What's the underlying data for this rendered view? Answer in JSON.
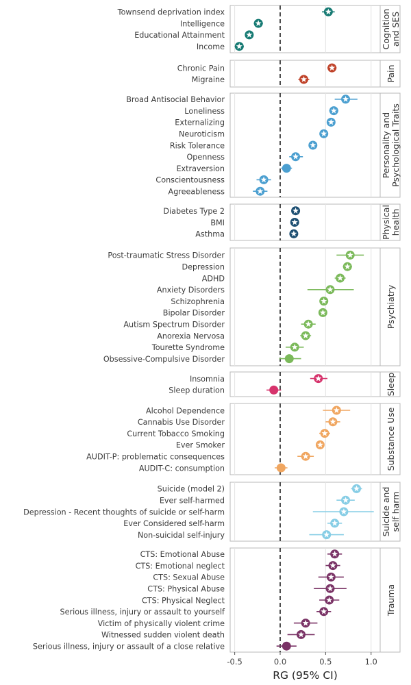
{
  "chart_data": {
    "type": "forest",
    "xlabel": "RG (95% CI)",
    "xlim": [
      -0.55,
      1.1
    ],
    "xticks": [
      -0.5,
      0.0,
      0.5,
      1.0
    ],
    "xtick_labels": [
      "-0.5",
      "0.0",
      "0.5",
      "1.0"
    ],
    "reference_line": 0,
    "markers": {
      "star": "significant",
      "circle": "not significant"
    },
    "panels": [
      {
        "label": [
          "Cognition",
          "and SES"
        ],
        "color": "#167a73",
        "rows": [
          {
            "name": "Townsend deprivation index",
            "rg": 0.53,
            "lo": 0.46,
            "hi": 0.6,
            "marker": "star"
          },
          {
            "name": "Intelligence",
            "rg": -0.24,
            "lo": -0.29,
            "hi": -0.19,
            "marker": "star"
          },
          {
            "name": "Educational Attainment",
            "rg": -0.34,
            "lo": -0.38,
            "hi": -0.3,
            "marker": "star"
          },
          {
            "name": "Income",
            "rg": -0.45,
            "lo": -0.5,
            "hi": -0.4,
            "marker": "star"
          }
        ]
      },
      {
        "label": [
          "Pain"
        ],
        "color": "#c0432a",
        "rows": [
          {
            "name": "Chronic Pain",
            "rg": 0.57,
            "lo": 0.52,
            "hi": 0.62,
            "marker": "star"
          },
          {
            "name": "Migraine",
            "rg": 0.26,
            "lo": 0.2,
            "hi": 0.32,
            "marker": "star"
          }
        ]
      },
      {
        "label": [
          "Personality and",
          "Psychological Traits"
        ],
        "color": "#4b9fd0",
        "rows": [
          {
            "name": "Broad Antisocial Behavior",
            "rg": 0.72,
            "lo": 0.6,
            "hi": 0.85,
            "marker": "star"
          },
          {
            "name": "Loneliness",
            "rg": 0.59,
            "lo": 0.54,
            "hi": 0.64,
            "marker": "star"
          },
          {
            "name": "Externalizing",
            "rg": 0.56,
            "lo": 0.52,
            "hi": 0.6,
            "marker": "star"
          },
          {
            "name": "Neuroticism",
            "rg": 0.48,
            "lo": 0.44,
            "hi": 0.52,
            "marker": "star"
          },
          {
            "name": "Risk Tolerance",
            "rg": 0.36,
            "lo": 0.32,
            "hi": 0.4,
            "marker": "star"
          },
          {
            "name": "Openness",
            "rg": 0.17,
            "lo": 0.1,
            "hi": 0.25,
            "marker": "star"
          },
          {
            "name": "Extraversion",
            "rg": 0.07,
            "lo": 0.01,
            "hi": 0.13,
            "marker": "circle"
          },
          {
            "name": "Conscientousness",
            "rg": -0.18,
            "lo": -0.26,
            "hi": -0.1,
            "marker": "star"
          },
          {
            "name": "Agreeableness",
            "rg": -0.22,
            "lo": -0.3,
            "hi": -0.14,
            "marker": "star"
          }
        ]
      },
      {
        "label": [
          "Physical",
          "health"
        ],
        "color": "#1d4f72",
        "rows": [
          {
            "name": "Diabetes Type 2",
            "rg": 0.17,
            "lo": 0.13,
            "hi": 0.21,
            "marker": "star"
          },
          {
            "name": "BMI",
            "rg": 0.16,
            "lo": 0.13,
            "hi": 0.19,
            "marker": "star"
          },
          {
            "name": "Asthma",
            "rg": 0.15,
            "lo": 0.11,
            "hi": 0.19,
            "marker": "star"
          }
        ]
      },
      {
        "label": [
          "Psychiatry"
        ],
        "color": "#7bb95a",
        "rows": [
          {
            "name": "Post-traumatic Stress Disorder",
            "rg": 0.77,
            "lo": 0.62,
            "hi": 0.92,
            "marker": "star"
          },
          {
            "name": "Depression",
            "rg": 0.74,
            "lo": 0.69,
            "hi": 0.79,
            "marker": "star"
          },
          {
            "name": "ADHD",
            "rg": 0.66,
            "lo": 0.6,
            "hi": 0.72,
            "marker": "star"
          },
          {
            "name": "Anxiety Disorders",
            "rg": 0.55,
            "lo": 0.3,
            "hi": 0.81,
            "marker": "star"
          },
          {
            "name": "Schizophrenia",
            "rg": 0.48,
            "lo": 0.45,
            "hi": 0.51,
            "marker": "star"
          },
          {
            "name": "Bipolar Disorder",
            "rg": 0.47,
            "lo": 0.43,
            "hi": 0.51,
            "marker": "star"
          },
          {
            "name": "Autism Spectrum Disorder",
            "rg": 0.31,
            "lo": 0.23,
            "hi": 0.39,
            "marker": "star"
          },
          {
            "name": "Anorexia Nervosa",
            "rg": 0.28,
            "lo": 0.22,
            "hi": 0.34,
            "marker": "star"
          },
          {
            "name": "Tourette Syndrome",
            "rg": 0.16,
            "lo": 0.06,
            "hi": 0.26,
            "marker": "star"
          },
          {
            "name": "Obsessive-Compulsive Disorder",
            "rg": 0.1,
            "lo": -0.01,
            "hi": 0.23,
            "marker": "circle"
          }
        ]
      },
      {
        "label": [
          "Sleep"
        ],
        "color": "#d6336c",
        "rows": [
          {
            "name": "Insomnia",
            "rg": 0.42,
            "lo": 0.33,
            "hi": 0.52,
            "marker": "star"
          },
          {
            "name": "Sleep duration",
            "rg": -0.07,
            "lo": -0.15,
            "hi": 0.01,
            "marker": "circle"
          }
        ]
      },
      {
        "label": [
          "Substance Use"
        ],
        "color": "#f0a660",
        "rows": [
          {
            "name": "Alcohol Dependence",
            "rg": 0.62,
            "lo": 0.47,
            "hi": 0.77,
            "marker": "star"
          },
          {
            "name": "Cannabis Use Disorder",
            "rg": 0.58,
            "lo": 0.5,
            "hi": 0.66,
            "marker": "star"
          },
          {
            "name": "Current Tobacco Smoking",
            "rg": 0.49,
            "lo": 0.43,
            "hi": 0.55,
            "marker": "star"
          },
          {
            "name": "Ever Smoker",
            "rg": 0.44,
            "lo": 0.4,
            "hi": 0.48,
            "marker": "star"
          },
          {
            "name": "AUDIT-P: problematic consequences",
            "rg": 0.28,
            "lo": 0.19,
            "hi": 0.37,
            "marker": "star"
          },
          {
            "name": "AUDIT-C: consumption",
            "rg": 0.01,
            "lo": -0.06,
            "hi": 0.08,
            "marker": "circle"
          }
        ]
      },
      {
        "label": [
          "Suicide and",
          "self harm"
        ],
        "color": "#86cde5",
        "rows": [
          {
            "name": "Suicide (model 2)",
            "rg": 0.84,
            "lo": 0.78,
            "hi": 0.9,
            "marker": "star"
          },
          {
            "name": "Ever self-harmed",
            "rg": 0.72,
            "lo": 0.62,
            "hi": 0.82,
            "marker": "star"
          },
          {
            "name": "Depression - Recent thoughts of suicide or self-harm",
            "rg": 0.7,
            "lo": 0.36,
            "hi": 1.03,
            "marker": "star"
          },
          {
            "name": "Ever Considered self-harm",
            "rg": 0.6,
            "lo": 0.52,
            "hi": 0.68,
            "marker": "star"
          },
          {
            "name": "Non-suicidal self-injury",
            "rg": 0.51,
            "lo": 0.32,
            "hi": 0.7,
            "marker": "star"
          }
        ]
      },
      {
        "label": [
          "Trauma"
        ],
        "color": "#7a3366",
        "rows": [
          {
            "name": "CTS: Emotional Abuse",
            "rg": 0.6,
            "lo": 0.52,
            "hi": 0.68,
            "marker": "star"
          },
          {
            "name": "CTS: Emotional neglect",
            "rg": 0.58,
            "lo": 0.5,
            "hi": 0.66,
            "marker": "star"
          },
          {
            "name": "CTS: Sexual Abuse",
            "rg": 0.56,
            "lo": 0.42,
            "hi": 0.7,
            "marker": "star"
          },
          {
            "name": "CTS: Physical Abuse",
            "rg": 0.55,
            "lo": 0.37,
            "hi": 0.73,
            "marker": "star"
          },
          {
            "name": "CTS: Physical Neglect",
            "rg": 0.54,
            "lo": 0.43,
            "hi": 0.65,
            "marker": "star"
          },
          {
            "name": "Serious illness, injury or assault to yourself",
            "rg": 0.48,
            "lo": 0.4,
            "hi": 0.56,
            "marker": "star"
          },
          {
            "name": "Victim of physically violent crime",
            "rg": 0.28,
            "lo": 0.15,
            "hi": 0.41,
            "marker": "star"
          },
          {
            "name": "Witnessed sudden violent death",
            "rg": 0.23,
            "lo": 0.08,
            "hi": 0.38,
            "marker": "star"
          },
          {
            "name": "Serious illness, injury or assault of a close relative",
            "rg": 0.07,
            "lo": -0.04,
            "hi": 0.18,
            "marker": "circle"
          }
        ]
      }
    ]
  }
}
